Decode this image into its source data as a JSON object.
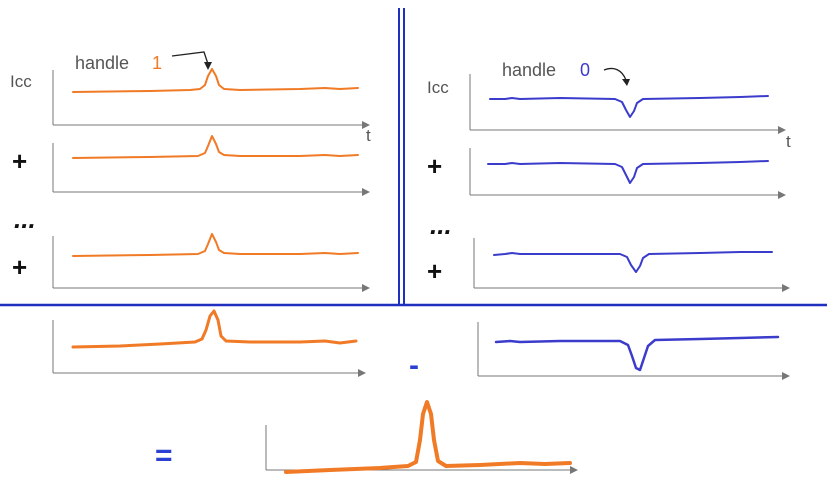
{
  "left_panel": {
    "y_label": "Icc",
    "x_label": "t",
    "callout_text": "handle ",
    "callout_value": "1",
    "op_plus_1": "+",
    "op_dots": "...",
    "op_plus_2": "+",
    "trace_color": "#f07a26",
    "peak_direction": "up"
  },
  "right_panel": {
    "y_label": "Icc",
    "x_label": "t",
    "callout_text": "handle ",
    "callout_value": "0",
    "op_plus_1": "+",
    "op_dots": "...",
    "op_plus_2": "+",
    "trace_color": "#3b3bcc",
    "peak_direction": "down"
  },
  "bottom": {
    "minus_sign": "-",
    "equals_sign": "="
  },
  "colors": {
    "orange": "#f07a26",
    "blue": "#3b3bcc",
    "divider": "#1f2fbf",
    "axis": "#777777"
  }
}
